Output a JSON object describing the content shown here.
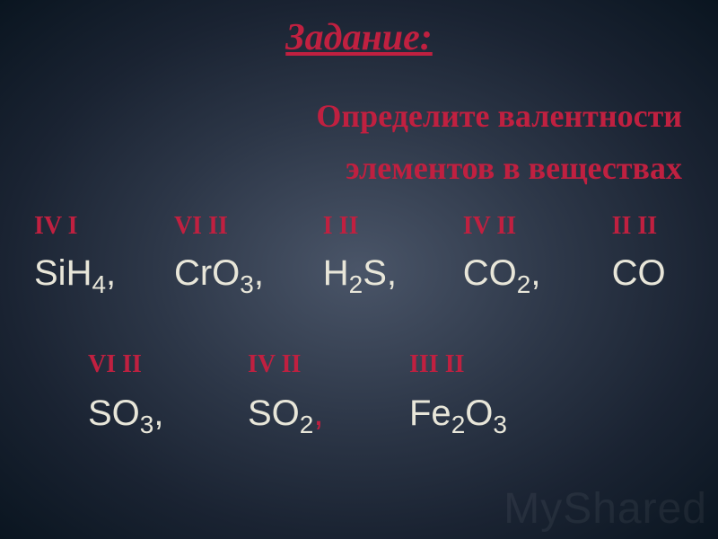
{
  "title": "Задание:",
  "subtitle_line1": "Определите валентности",
  "subtitle_line2": "элементов в веществах",
  "colors": {
    "accent": "#c02040",
    "text": "#e8e6d9",
    "bg_center": "#4a5568",
    "bg_outer": "#0a1520"
  },
  "row1": {
    "valences": [
      "IV  I",
      "VI II",
      "I  II",
      "IV II",
      "II II"
    ],
    "formulas": [
      {
        "base": "SiH",
        "sub": "4",
        "tail": ","
      },
      {
        "base": "CrO",
        "sub": "3",
        "tail": ","
      },
      {
        "base": "H",
        "sub": "2",
        "tail": "S,"
      },
      {
        "base": "CO",
        "sub": "2",
        "tail": ","
      },
      {
        "base": "CO",
        "sub": "",
        "tail": ""
      }
    ]
  },
  "row2": {
    "valences": [
      "VI II",
      "IV II",
      "III  II"
    ],
    "formulas": [
      {
        "base": "SO",
        "sub": "3",
        "tail": ","
      },
      {
        "base": "SO",
        "sub": "2",
        "tail": ",",
        "tail_red": true
      },
      {
        "base": "Fe",
        "sub": "2",
        "tail": "O",
        "sub2": "3"
      }
    ]
  },
  "watermark": "MyShared"
}
